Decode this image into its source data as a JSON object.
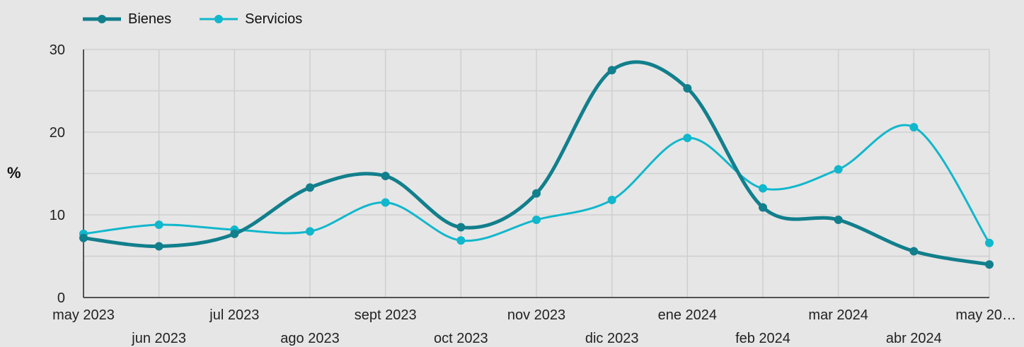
{
  "chart_data": {
    "type": "line",
    "title": "",
    "xlabel": "",
    "ylabel": "%",
    "ylim": [
      0,
      30
    ],
    "yticks": [
      "0",
      "10",
      "20",
      "30"
    ],
    "grid": true,
    "legend_position": "top-left",
    "categories": [
      "may 2023",
      "jun 2023",
      "jul 2023",
      "ago 2023",
      "sept 2023",
      "oct 2023",
      "nov 2023",
      "dic 2023",
      "ene 2024",
      "feb 2024",
      "mar 2024",
      "abr 2024",
      "may 20…"
    ],
    "series": [
      {
        "name": "Bienes",
        "color": "#127f8c",
        "width": 5,
        "values": [
          7.2,
          6.2,
          7.7,
          13.3,
          14.7,
          8.5,
          12.6,
          27.5,
          25.3,
          10.9,
          9.4,
          5.6,
          4.0
        ]
      },
      {
        "name": "Servicios",
        "color": "#11b7cc",
        "width": 3,
        "values": [
          7.7,
          8.8,
          8.2,
          8.0,
          11.5,
          6.9,
          9.4,
          11.8,
          19.3,
          13.2,
          15.5,
          20.6,
          6.6
        ]
      }
    ]
  }
}
